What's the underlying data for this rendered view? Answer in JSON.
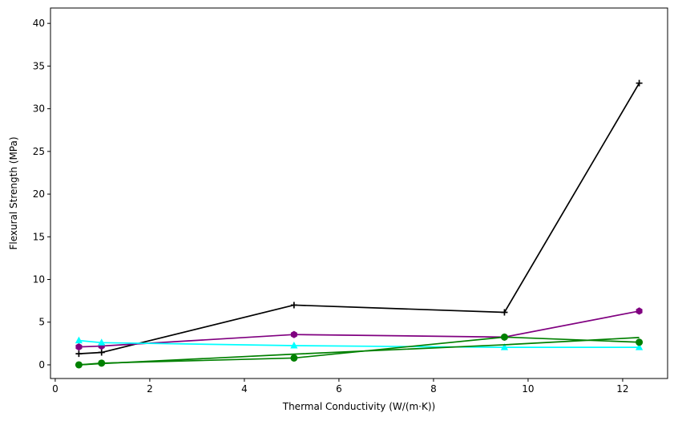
{
  "chart_data": {
    "type": "line",
    "title": "",
    "xlabel": "Thermal Conductivity (W/(m·K))",
    "ylabel": "Flexural Strength (MPa)",
    "xlim": [
      -0.1,
      12.95
    ],
    "ylim": [
      -1.6,
      41.8
    ],
    "xticks": [
      0,
      2,
      4,
      6,
      8,
      10,
      12
    ],
    "yticks": [
      0,
      5,
      10,
      15,
      20,
      25,
      30,
      35,
      40
    ],
    "grid": false,
    "series": [
      {
        "color": "#000000",
        "marker": "plus",
        "x": [
          0.5,
          0.98,
          5.05,
          9.5,
          12.35
        ],
        "y": [
          1.3,
          1.45,
          7.0,
          6.15,
          33.0
        ]
      },
      {
        "color": "#800080",
        "marker": "hexagon",
        "x": [
          0.5,
          0.98,
          5.05,
          9.5,
          12.35
        ],
        "y": [
          2.1,
          2.2,
          3.55,
          3.25,
          6.3
        ]
      },
      {
        "color": "#00ffff",
        "marker": "triangle",
        "x": [
          0.5,
          0.98,
          5.05,
          9.5,
          12.35
        ],
        "y": [
          2.85,
          2.6,
          2.25,
          2.05,
          2.05
        ]
      },
      {
        "line_color": "#008000",
        "line_x": [
          0.5,
          0.98,
          5.05,
          9.5,
          12.35
        ],
        "line_y": [
          0.0,
          0.15,
          1.25,
          2.35,
          3.2
        ]
      },
      {
        "color": "#008000",
        "marker": "circle",
        "x": [
          0.5,
          0.98,
          5.05,
          9.5,
          12.35
        ],
        "y": [
          0.0,
          0.2,
          0.8,
          3.25,
          2.65
        ]
      }
    ]
  }
}
